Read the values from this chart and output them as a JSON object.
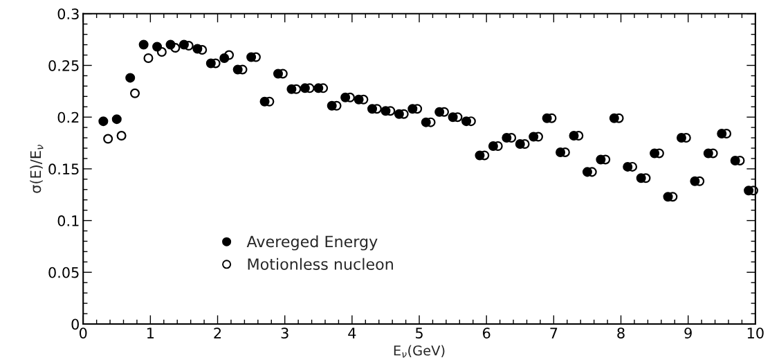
{
  "chart_data": {
    "type": "scatter",
    "xlabel": "E$_{ν}$(GeV)",
    "ylabel": "σ(E)/E$_{ν}$",
    "xlim": [
      0,
      10
    ],
    "ylim": [
      0,
      0.3
    ],
    "xticks": [
      0,
      1,
      2,
      3,
      4,
      5,
      6,
      7,
      8,
      9,
      10
    ],
    "yticks": [
      0,
      0.05,
      0.1,
      0.15,
      0.2,
      0.25,
      0.3
    ],
    "grid": false,
    "legend": "bottom left",
    "marker": "circle",
    "series": [
      {
        "name": "Avereged Energy",
        "color": "#000000",
        "x": [
          0.3,
          0.5,
          0.7,
          0.9,
          1.1,
          1.3,
          1.5,
          1.7,
          1.9,
          2.1,
          2.3,
          2.5,
          2.7,
          2.9,
          3.1,
          3.3,
          3.5,
          3.7,
          3.9,
          4.1,
          4.3,
          4.5,
          4.7,
          4.9,
          5.1,
          5.3,
          5.5,
          5.7,
          5.9,
          6.1,
          6.3,
          6.5,
          6.7,
          6.9,
          7.1,
          7.3,
          7.5,
          7.7,
          7.9,
          8.1,
          8.3,
          8.5,
          8.7,
          8.9,
          9.1,
          9.3,
          9.5,
          9.7,
          9.9
        ],
        "values": [
          0.196,
          0.198,
          0.238,
          0.27,
          0.268,
          0.27,
          0.27,
          0.266,
          0.252,
          0.257,
          0.246,
          0.258,
          0.215,
          0.242,
          0.227,
          0.228,
          0.228,
          0.211,
          0.219,
          0.217,
          0.208,
          0.206,
          0.203,
          0.208,
          0.195,
          0.205,
          0.2,
          0.196,
          0.163,
          0.172,
          0.18,
          0.174,
          0.181,
          0.199,
          0.166,
          0.182,
          0.147,
          0.159,
          0.199,
          0.152,
          0.141,
          0.165,
          0.123,
          0.18,
          0.138,
          0.165,
          0.184,
          0.158,
          0.129
        ]
      },
      {
        "name": "Motionless nucleon",
        "color": "#000000",
        "x": [
          0.37,
          0.57,
          0.77,
          0.97,
          1.17,
          1.37,
          1.57,
          1.77,
          1.97,
          2.17,
          2.37,
          2.57,
          2.77,
          2.97,
          3.17,
          3.37,
          3.57,
          3.77,
          3.97,
          4.17,
          4.37,
          4.57,
          4.77,
          4.97,
          5.17,
          5.37,
          5.57,
          5.77,
          5.97,
          6.17,
          6.37,
          6.57,
          6.77,
          6.97,
          7.17,
          7.37,
          7.57,
          7.77,
          7.97,
          8.17,
          8.37,
          8.57,
          8.77,
          8.97,
          9.17,
          9.37,
          9.57,
          9.77,
          9.97
        ],
        "values": [
          0.179,
          0.182,
          0.223,
          0.257,
          0.263,
          0.267,
          0.269,
          0.265,
          0.252,
          0.26,
          0.246,
          0.258,
          0.215,
          0.242,
          0.227,
          0.228,
          0.228,
          0.211,
          0.219,
          0.217,
          0.208,
          0.206,
          0.203,
          0.208,
          0.195,
          0.205,
          0.2,
          0.196,
          0.163,
          0.172,
          0.18,
          0.174,
          0.181,
          0.199,
          0.166,
          0.182,
          0.147,
          0.159,
          0.199,
          0.152,
          0.141,
          0.165,
          0.123,
          0.18,
          0.138,
          0.165,
          0.184,
          0.158,
          0.129
        ]
      }
    ]
  }
}
